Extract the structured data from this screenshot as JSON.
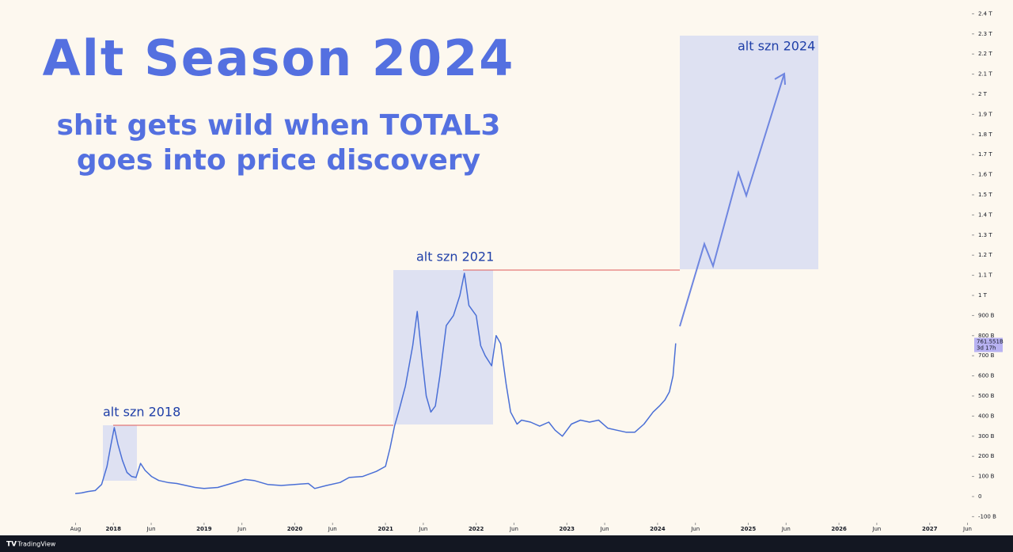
{
  "chart_data": {
    "type": "line",
    "title": "Alt Season 2024",
    "subtitle": [
      "shit gets wild when TOTAL3",
      "goes into price discovery"
    ],
    "annotations": [
      "alt szn 2018",
      "alt szn 2021",
      "alt szn 2024"
    ],
    "brand": "TradingView",
    "color": "#4a6fd6",
    "price_label": {
      "value": 761.551,
      "label": "761.551B",
      "countdown": "3d 17h"
    },
    "xlim": [
      2016.75,
      2027.465
    ],
    "ylim": [
      -193,
      2468.5
    ],
    "xticks": [
      {
        "value": 2017.583,
        "label": "Aug"
      },
      2018,
      {
        "value": 2018.417,
        "label": "Jun"
      },
      2019,
      {
        "value": 2019.417,
        "label": "Jun"
      },
      2020,
      {
        "value": 2020.417,
        "label": "Jun"
      },
      2021,
      {
        "value": 2021.417,
        "label": "Jun"
      },
      2022,
      {
        "value": 2022.417,
        "label": "Jun"
      },
      2023,
      {
        "value": 2023.417,
        "label": "Jun"
      },
      2024,
      {
        "value": 2024.417,
        "label": "Jun"
      },
      2025,
      {
        "value": 2025.417,
        "label": "Jun"
      },
      2026,
      {
        "value": 2026.417,
        "label": "Jun"
      },
      2027,
      {
        "value": 2027.417,
        "label": "Jun"
      }
    ],
    "yticks": [
      {
        "value": -100,
        "label": "-100 B"
      },
      0,
      {
        "value": 100,
        "label": "100 B"
      },
      {
        "value": 200,
        "label": "200 B"
      },
      {
        "value": 300,
        "label": "300 B"
      },
      {
        "value": 400,
        "label": "400 B"
      },
      {
        "value": 500,
        "label": "500 B"
      },
      {
        "value": 600,
        "label": "600 B"
      },
      {
        "value": 700,
        "label": "700 B"
      },
      {
        "value": 800,
        "label": "800 B"
      },
      {
        "value": 900,
        "label": "900 B"
      },
      {
        "value": 1000,
        "label": "1 T"
      },
      {
        "value": 1100,
        "label": "1.1 T"
      },
      {
        "value": 1200,
        "label": "1.2 T"
      },
      {
        "value": 1300,
        "label": "1.3 T"
      },
      {
        "value": 1400,
        "label": "1.4 T"
      },
      {
        "value": 1500,
        "label": "1.5 T"
      },
      {
        "value": 1600,
        "label": "1.6 T"
      },
      {
        "value": 1700,
        "label": "1.7 T"
      },
      {
        "value": 1800,
        "label": "1.8 T"
      },
      {
        "value": 1900,
        "label": "1.9 T"
      },
      {
        "value": 2000,
        "label": "2 T"
      },
      {
        "value": 2100,
        "label": "2.1 T"
      },
      {
        "value": 2200,
        "label": "2.2 T"
      },
      {
        "value": 2300,
        "label": "2.3 T"
      },
      {
        "value": 2400,
        "label": "2.4 T"
      }
    ],
    "x": [
      2017.58,
      2017.65,
      2017.72,
      2017.8,
      2017.87,
      2017.93,
      2017.97,
      2018.01,
      2018.05,
      2018.1,
      2018.15,
      2018.2,
      2018.25,
      2018.3,
      2018.35,
      2018.42,
      2018.5,
      2018.6,
      2018.7,
      2018.8,
      2018.9,
      2019.0,
      2019.15,
      2019.3,
      2019.45,
      2019.55,
      2019.7,
      2019.85,
      2020.0,
      2020.15,
      2020.22,
      2020.35,
      2020.5,
      2020.6,
      2020.75,
      2020.9,
      2021.0,
      2021.05,
      2021.1,
      2021.15,
      2021.22,
      2021.3,
      2021.35,
      2021.4,
      2021.45,
      2021.5,
      2021.55,
      2021.6,
      2021.67,
      2021.75,
      2021.82,
      2021.87,
      2021.92,
      2022.0,
      2022.05,
      2022.1,
      2022.17,
      2022.22,
      2022.27,
      2022.33,
      2022.38,
      2022.45,
      2022.5,
      2022.6,
      2022.7,
      2022.8,
      2022.87,
      2022.95,
      2023.05,
      2023.15,
      2023.25,
      2023.35,
      2023.45,
      2023.55,
      2023.65,
      2023.75,
      2023.85,
      2023.95,
      2024.02,
      2024.08,
      2024.13,
      2024.17,
      2024.2
    ],
    "values": [
      15,
      18,
      25,
      30,
      60,
      150,
      250,
      343,
      260,
      180,
      120,
      100,
      95,
      165,
      130,
      100,
      80,
      70,
      65,
      55,
      45,
      40,
      45,
      65,
      85,
      80,
      60,
      55,
      60,
      65,
      40,
      55,
      70,
      95,
      100,
      125,
      150,
      240,
      350,
      430,
      550,
      750,
      920,
      700,
      500,
      420,
      450,
      600,
      850,
      900,
      1000,
      1110,
      950,
      900,
      750,
      700,
      650,
      800,
      760,
      560,
      420,
      360,
      380,
      370,
      350,
      370,
      330,
      300,
      360,
      380,
      370,
      380,
      340,
      330,
      320,
      320,
      360,
      420,
      450,
      480,
      520,
      600,
      761.551
    ]
  }
}
